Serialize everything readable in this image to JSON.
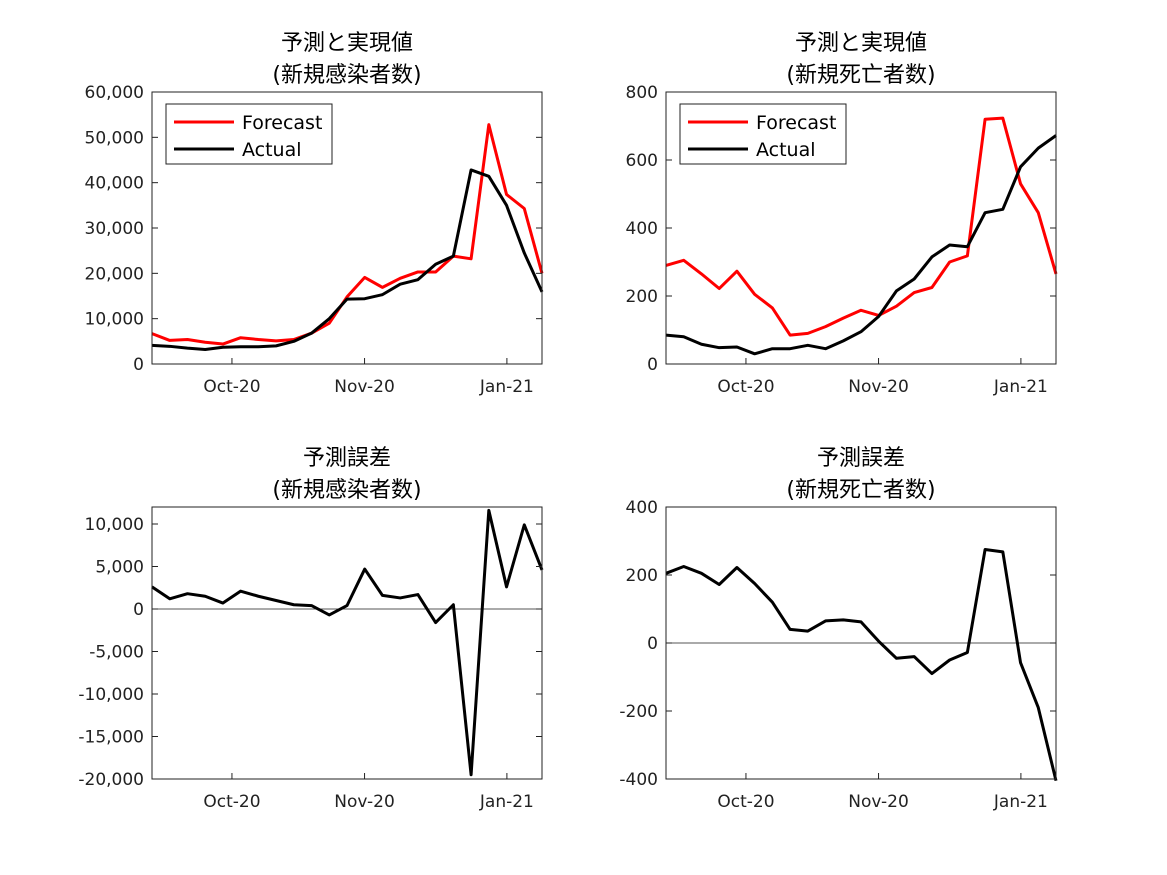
{
  "chart_data": [
    {
      "type": "line",
      "title": "予測と実現値",
      "subtitle": "(新規感染者数)",
      "xlabel": "",
      "ylabel": "",
      "x_tick_labels": [
        "Oct-20",
        "Nov-20",
        "Jan-21"
      ],
      "x_ticks": [
        "2020-10-01",
        "2020-11-01",
        "2021-01-01"
      ],
      "xlim": [
        "2020-09-12",
        "2021-01-08"
      ],
      "ylim": [
        0,
        60000
      ],
      "y_tick_labels": [
        "0",
        "10,000",
        "20,000",
        "30,000",
        "40,000",
        "50,000",
        "60,000"
      ],
      "y_ticks": [
        0,
        10000,
        20000,
        30000,
        40000,
        50000,
        60000
      ],
      "x": [
        "2020-09-12",
        "2020-09-16",
        "2020-09-20",
        "2020-09-24",
        "2020-09-28",
        "2020-10-02",
        "2020-10-06",
        "2020-10-10",
        "2020-10-14",
        "2020-10-18",
        "2020-10-22",
        "2020-10-26",
        "2020-10-30",
        "2020-11-03",
        "2020-11-07",
        "2020-11-11",
        "2020-11-15",
        "2020-11-19",
        "2020-11-23",
        "2020-11-27",
        "2020-12-01",
        "2020-12-05",
        "2020-12-09",
        "2020-12-13",
        "2020-12-17",
        "2020-12-21",
        "2020-12-25",
        "2020-12-29",
        "2021-01-02",
        "2021-01-06",
        "2021-01-08"
      ],
      "series": [
        {
          "name": "Forecast",
          "color": "#ff0000",
          "values": [
            6700,
            5200,
            5400,
            4800,
            4400,
            5800,
            5400,
            5100,
            5400,
            6800,
            9000,
            14800,
            19100,
            16900,
            18900,
            20300,
            20300,
            23800,
            23200,
            52800,
            37400,
            34300,
            20000,
            null,
            null,
            null,
            null,
            null,
            null,
            null,
            null
          ]
        },
        {
          "name": "Actual",
          "color": "#000000",
          "values": [
            4100,
            3900,
            3500,
            3200,
            3700,
            3800,
            3800,
            4000,
            5000,
            6800,
            10000,
            14300,
            14400,
            15300,
            17600,
            18600,
            22000,
            23800,
            42800,
            41400,
            35000,
            24500,
            15900,
            null,
            null,
            null,
            null,
            null,
            null,
            null,
            null
          ]
        }
      ],
      "legend": "top-left",
      "grid": false
    },
    {
      "type": "line",
      "title": "予測と実現値",
      "subtitle": "(新規死亡者数)",
      "xlabel": "",
      "ylabel": "",
      "x_tick_labels": [
        "Oct-20",
        "Nov-20",
        "Jan-21"
      ],
      "ylim": [
        0,
        800
      ],
      "y_tick_labels": [
        "0",
        "200",
        "400",
        "600",
        "800"
      ],
      "y_ticks": [
        0,
        200,
        400,
        600,
        800
      ],
      "series": [
        {
          "name": "Forecast",
          "color": "#ff0000",
          "values": [
            290,
            305,
            265,
            222,
            273,
            205,
            165,
            85,
            90,
            110,
            135,
            158,
            143,
            170,
            210,
            225,
            300,
            318,
            720,
            723,
            530,
            445,
            265
          ]
        },
        {
          "name": "Actual",
          "color": "#000000",
          "values": [
            85,
            80,
            58,
            48,
            50,
            30,
            45,
            45,
            55,
            45,
            68,
            95,
            140,
            215,
            250,
            315,
            350,
            345,
            445,
            455,
            580,
            635,
            672
          ]
        }
      ],
      "legend": "top-left",
      "grid": false
    },
    {
      "type": "line",
      "title": "予測誤差",
      "subtitle": "(新規感染者数)",
      "xlabel": "",
      "ylabel": "",
      "x_tick_labels": [
        "Oct-20",
        "Nov-20",
        "Jan-21"
      ],
      "ylim": [
        -20000,
        12000
      ],
      "y_tick_labels": [
        "-20,000",
        "-15,000",
        "-10,000",
        "-5,000",
        "0",
        "5,000",
        "10,000"
      ],
      "y_ticks": [
        -20000,
        -15000,
        -10000,
        -5000,
        0,
        5000,
        10000
      ],
      "series": [
        {
          "name": "",
          "color": "#000000",
          "values": [
            2600,
            1200,
            1800,
            1500,
            700,
            2100,
            1500,
            1000,
            500,
            400,
            -700,
            400,
            4700,
            1600,
            1300,
            1700,
            -1600,
            500,
            -19500,
            11600,
            2600,
            9900,
            4600
          ]
        }
      ],
      "zero_line": true,
      "grid": false
    },
    {
      "type": "line",
      "title": "予測誤差",
      "subtitle": "(新規死亡者数)",
      "xlabel": "",
      "ylabel": "",
      "x_tick_labels": [
        "Oct-20",
        "Nov-20",
        "Jan-21"
      ],
      "ylim": [
        -400,
        400
      ],
      "y_tick_labels": [
        "-400",
        "-200",
        "0",
        "200",
        "400"
      ],
      "y_ticks": [
        -400,
        -200,
        0,
        200,
        400
      ],
      "series": [
        {
          "name": "",
          "color": "#000000",
          "values": [
            205,
            225,
            205,
            172,
            222,
            175,
            120,
            40,
            35,
            65,
            68,
            62,
            5,
            -45,
            -40,
            -90,
            -50,
            -28,
            275,
            268,
            -58,
            -190,
            -405
          ]
        }
      ],
      "zero_line": true,
      "grid": false
    }
  ]
}
